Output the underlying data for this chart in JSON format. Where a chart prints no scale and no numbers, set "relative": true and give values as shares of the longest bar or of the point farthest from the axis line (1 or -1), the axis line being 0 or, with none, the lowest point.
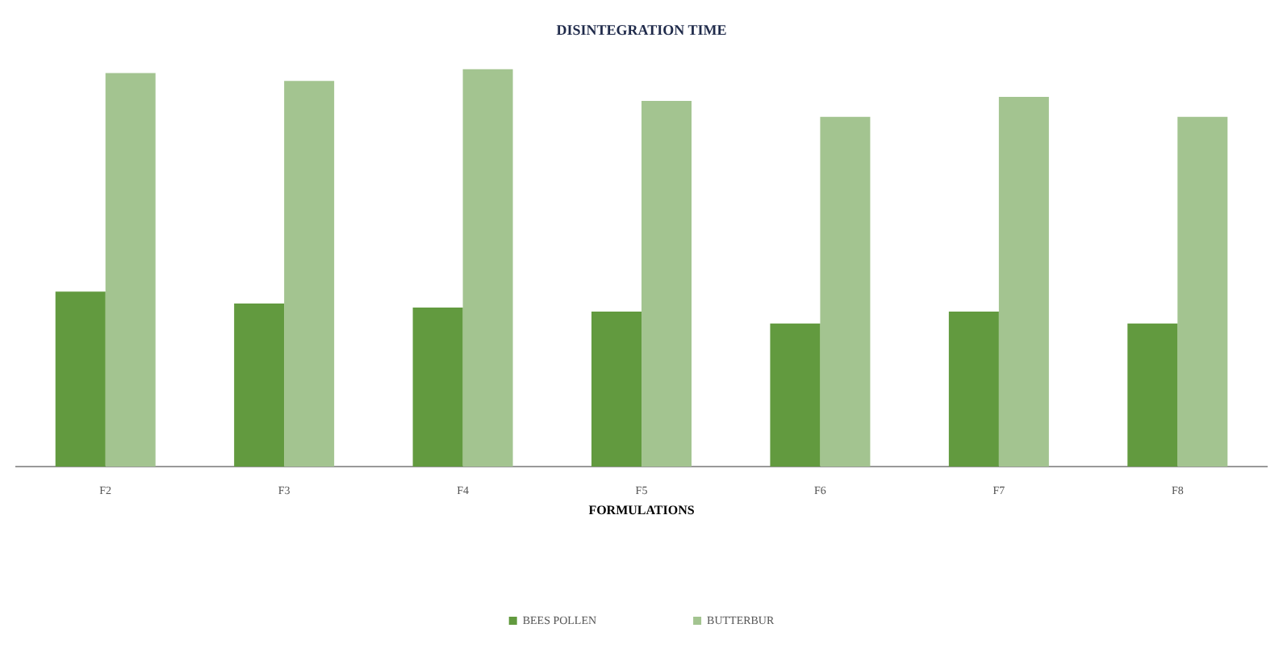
{
  "chart_data": {
    "type": "bar",
    "title": "DISINTEGRATION TIME",
    "xlabel": "FORMULATIONS",
    "relative": true,
    "legend": "bottom",
    "categories": [
      "F2",
      "F3",
      "F4",
      "F5",
      "F6",
      "F7",
      "F8"
    ],
    "series": [
      {
        "name": "BEES POLLEN",
        "color": "#629a3f",
        "values": [
          0.44,
          0.41,
          0.4,
          0.39,
          0.36,
          0.39,
          0.36
        ]
      },
      {
        "name": "BUTTERBUR",
        "color": "#a3c490",
        "values": [
          0.99,
          0.97,
          1,
          0.92,
          0.88,
          0.93,
          0.88
        ]
      }
    ]
  }
}
